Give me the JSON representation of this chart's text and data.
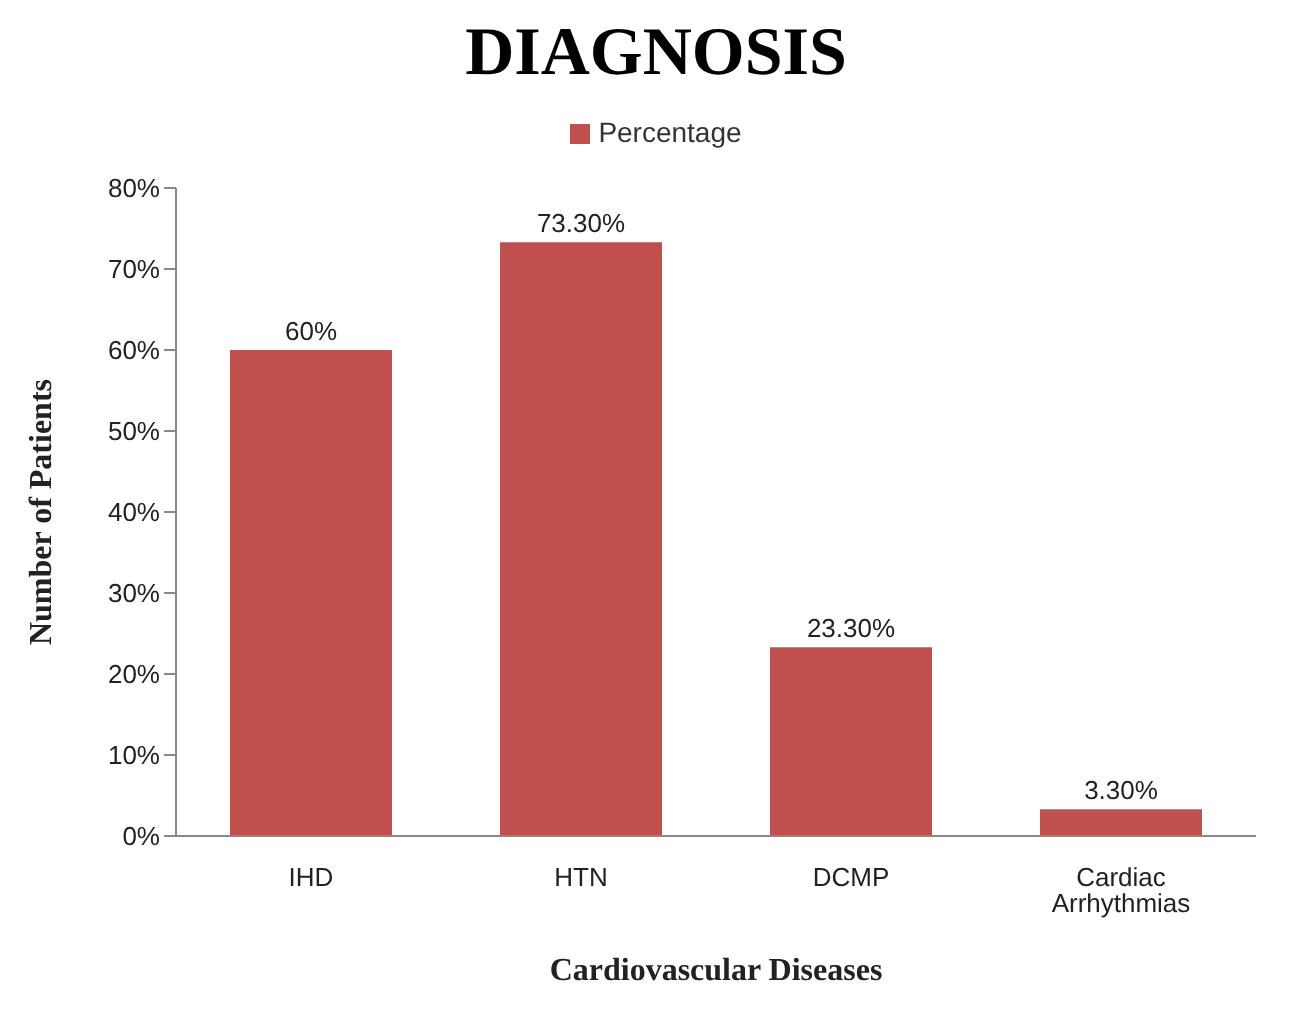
{
  "chart_data": {
    "type": "bar",
    "title": "DIAGNOSIS",
    "xlabel": "Cardiovascular Diseases",
    "ylabel": "Number of Patients",
    "categories": [
      "IHD",
      "HTN",
      "DCMP",
      "Cardiac Arrhythmias"
    ],
    "series": [
      {
        "name": "Percentage",
        "color": "#c0504d",
        "values": [
          60,
          73.3,
          23.3,
          3.3
        ],
        "value_labels": [
          "60%",
          "73.30%",
          "23.30%",
          "3.30%"
        ]
      }
    ],
    "ylim": [
      0,
      80
    ],
    "yticks": [
      {
        "value": 0,
        "label": "0%"
      },
      {
        "value": 10,
        "label": "10%"
      },
      {
        "value": 20,
        "label": "20%"
      },
      {
        "value": 30,
        "label": "30%"
      },
      {
        "value": 40,
        "label": "40%"
      },
      {
        "value": 50,
        "label": "50%"
      },
      {
        "value": 60,
        "label": "60%"
      },
      {
        "value": 70,
        "label": "70%"
      },
      {
        "value": 80,
        "label": "80%"
      }
    ],
    "grid": false,
    "legend": "top"
  }
}
